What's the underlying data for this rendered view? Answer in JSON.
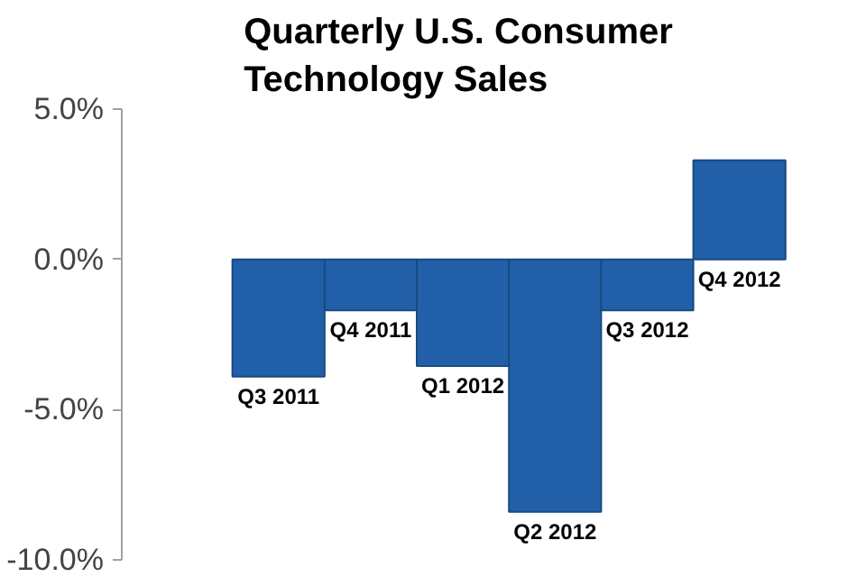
{
  "chart_data": {
    "type": "bar",
    "title": "Quarterly U.S. Consumer Technology Sales",
    "categories": [
      "Q3 2011",
      "Q4 2011",
      "Q1 2012",
      "Q2 2012",
      "Q3 2012",
      "Q4 2012"
    ],
    "values": [
      -3.9,
      -1.7,
      -3.55,
      -8.4,
      -1.7,
      3.3
    ],
    "color": "#2160a8",
    "ylim": [
      -10,
      5
    ],
    "yticks": [
      {
        "value": -10,
        "label": "-10.0%"
      },
      {
        "value": -5,
        "label": "-5.0%"
      },
      {
        "value": 0,
        "label": "0.0%"
      },
      {
        "value": 5,
        "label": "5.0%"
      }
    ],
    "grid": false
  }
}
